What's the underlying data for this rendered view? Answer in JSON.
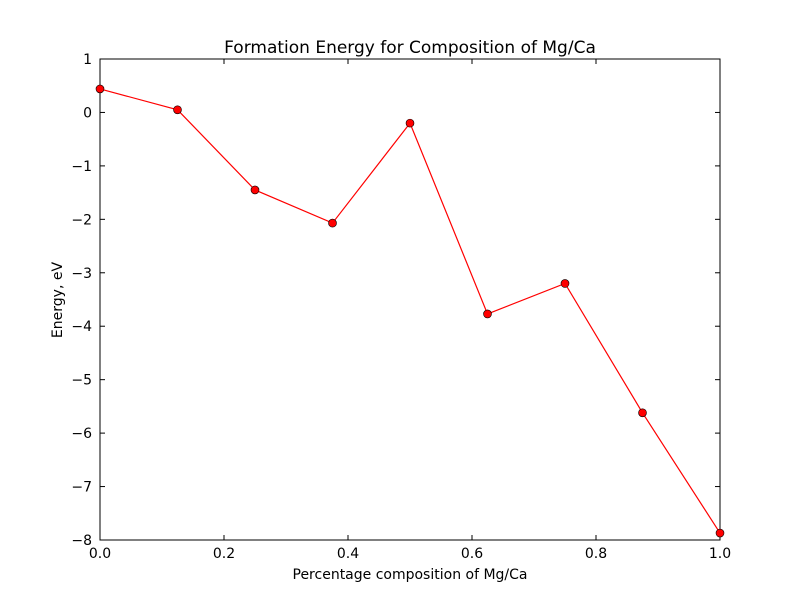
{
  "chart_data": {
    "type": "line",
    "title": "Formation Energy for Composition of Mg/Ca",
    "xlabel": "Percentage composition of Mg/Ca",
    "ylabel": "Energy, eV",
    "xlim": [
      0.0,
      1.0
    ],
    "ylim": [
      -8,
      1
    ],
    "x_ticks": [
      0.0,
      0.2,
      0.4,
      0.6,
      0.8,
      1.0
    ],
    "x_tick_labels": [
      "0.0",
      "0.2",
      "0.4",
      "0.6",
      "0.8",
      "1.0"
    ],
    "y_ticks": [
      1,
      0,
      -1,
      -2,
      -3,
      -4,
      -5,
      -6,
      -7,
      -8
    ],
    "y_tick_labels": [
      "1",
      "0",
      "−1",
      "−2",
      "−3",
      "−4",
      "−5",
      "−6",
      "−7",
      "−8"
    ],
    "grid": false,
    "series": [
      {
        "color": "#ff0000",
        "marker": "circle",
        "x": [
          0.0,
          0.125,
          0.25,
          0.375,
          0.5,
          0.625,
          0.75,
          0.875,
          1.0
        ],
        "y": [
          0.44,
          0.05,
          -1.45,
          -2.07,
          -0.2,
          -3.77,
          -3.2,
          -5.62,
          -7.87
        ]
      }
    ]
  }
}
